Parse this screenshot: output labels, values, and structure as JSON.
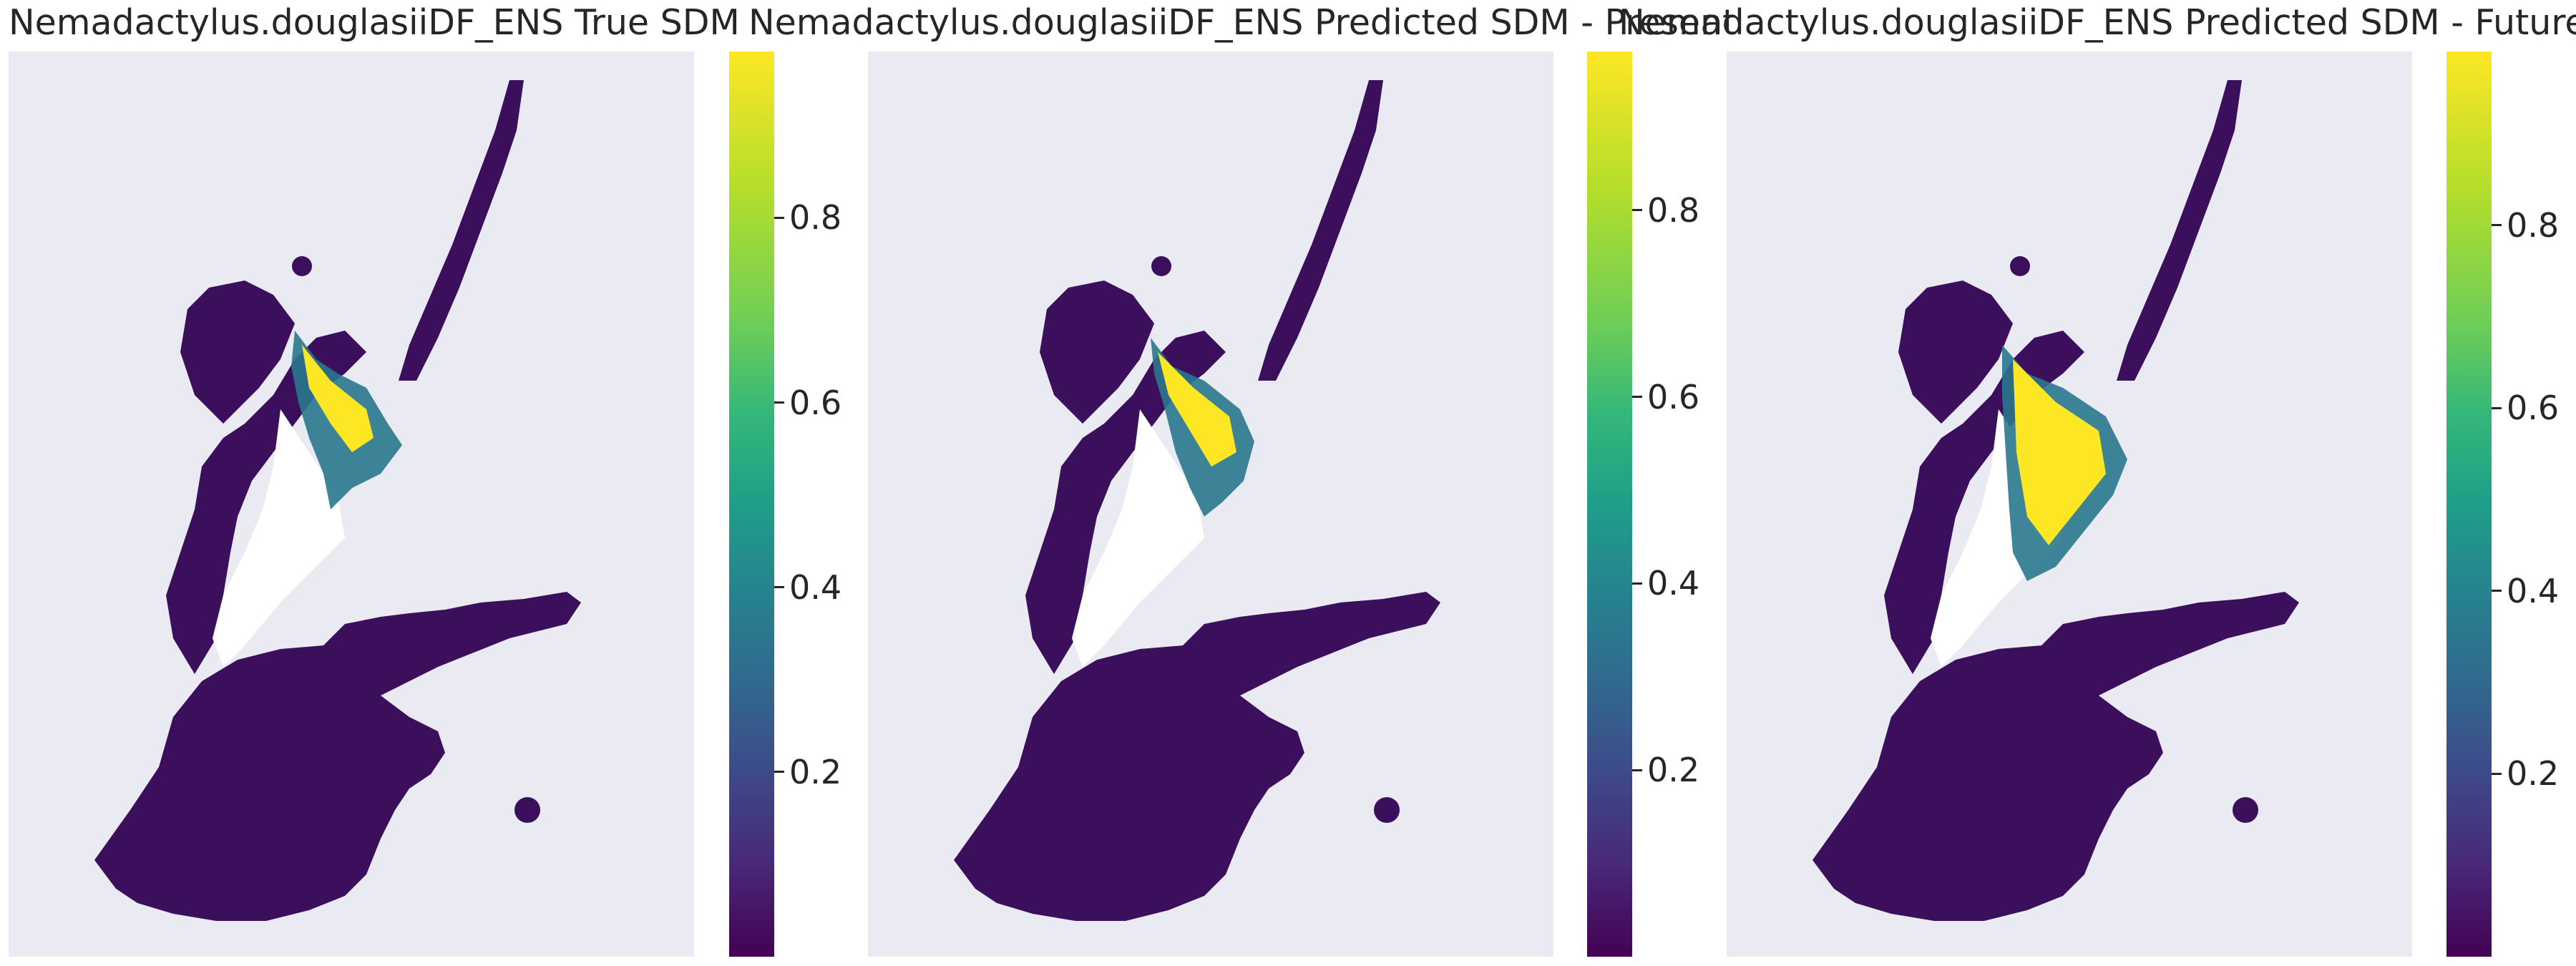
{
  "chart_data": [
    {
      "type": "heatmap",
      "title": "Nemadactylus.douglasiiDF_ENS True SDM",
      "colormap": "viridis",
      "colorbar": {
        "range": [
          0.0,
          0.98
        ],
        "ticks": [
          0.2,
          0.4,
          0.6,
          0.8
        ],
        "tick_labels": [
          "0.2",
          "0.4",
          "0.6",
          "0.8"
        ]
      },
      "grid": false
    },
    {
      "type": "heatmap",
      "title": "Nemadactylus.douglasiiDF_ENS Predicted SDM - Present",
      "colormap": "viridis",
      "colorbar": {
        "range": [
          0.0,
          0.97
        ],
        "ticks": [
          0.2,
          0.4,
          0.6,
          0.8
        ],
        "tick_labels": [
          "0.2",
          "0.4",
          "0.6",
          "0.8"
        ]
      },
      "grid": false
    },
    {
      "type": "heatmap",
      "title": "Nemadactylus.douglasiiDF_ENS Predicted SDM - Future",
      "colormap": "viridis",
      "colorbar": {
        "range": [
          0.0,
          0.99
        ],
        "ticks": [
          0.2,
          0.4,
          0.6,
          0.8
        ],
        "tick_labels": [
          "0.2",
          "0.4",
          "0.6",
          "0.8"
        ]
      },
      "grid": false
    }
  ]
}
